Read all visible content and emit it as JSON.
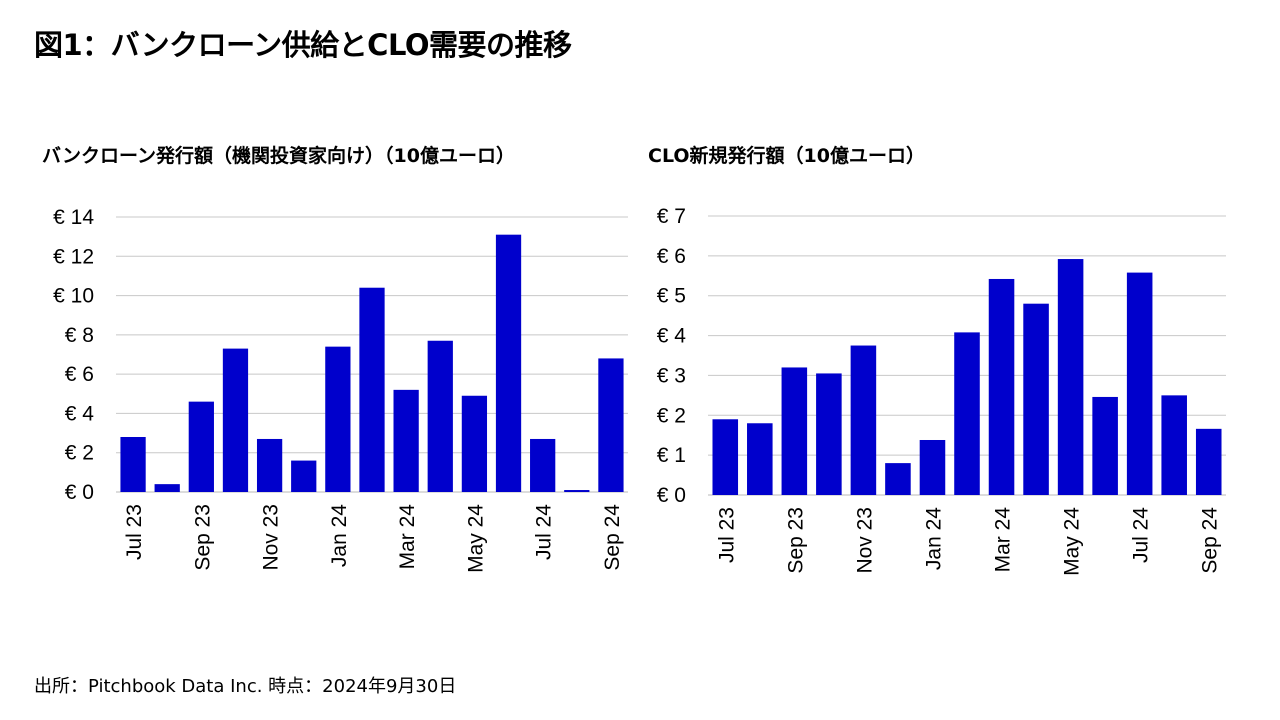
{
  "title": "図1：バンクローン供給とCLO需要の推移",
  "source": "出所：Pitchbook Data Inc. 時点：2024年9月30日",
  "colors": {
    "bar": "#0000CC",
    "grid": "#C8C8C8"
  },
  "chart_data": [
    {
      "type": "bar",
      "title": "バンクローン発行額（機関投資家向け）（10億ユーロ）",
      "categories": [
        "Jul 23",
        "Aug 23",
        "Sep 23",
        "Oct 23",
        "Nov 23",
        "Dec 23",
        "Jan 24",
        "Feb 24",
        "Mar 24",
        "Apr 24",
        "May 24",
        "Jun 24",
        "Jul 24",
        "Aug 24",
        "Sep 24"
      ],
      "values": [
        2.8,
        0.4,
        4.6,
        7.3,
        2.7,
        1.6,
        7.4,
        10.4,
        5.2,
        7.7,
        4.9,
        13.1,
        2.7,
        0.1,
        6.8
      ],
      "tick_labels_x": [
        "Jul 23",
        "Sep 23",
        "Nov 23",
        "Jan 24",
        "Mar 24",
        "May 24",
        "Jul 24",
        "Sep 24"
      ],
      "tick_labels_y": [
        "€ 0",
        "€ 2",
        "€ 4",
        "€ 6",
        "€ 8",
        "€ 10",
        "€ 12",
        "€ 14"
      ],
      "ylim": [
        0,
        14
      ],
      "grid": true
    },
    {
      "type": "bar",
      "title": "CLO新規発行額（10億ユーロ）",
      "categories": [
        "Jul 23",
        "Aug 23",
        "Sep 23",
        "Oct 23",
        "Nov 23",
        "Dec 23",
        "Jan 24",
        "Feb 24",
        "Mar 24",
        "Apr 24",
        "May 24",
        "Jun 24",
        "Jul 24",
        "Aug 24",
        "Sep 24"
      ],
      "values": [
        1.9,
        1.8,
        3.2,
        3.05,
        3.75,
        0.8,
        1.38,
        4.08,
        5.42,
        4.8,
        5.92,
        2.46,
        5.58,
        2.5,
        1.66
      ],
      "tick_labels_x": [
        "Jul 23",
        "Sep 23",
        "Nov 23",
        "Jan 24",
        "Mar 24",
        "May 24",
        "Jul 24",
        "Sep 24"
      ],
      "tick_labels_y": [
        "€ 0",
        "€ 1",
        "€ 2",
        "€ 3",
        "€ 4",
        "€ 5",
        "€ 6",
        "€ 7"
      ],
      "ylim": [
        0,
        7
      ],
      "grid": true
    }
  ]
}
